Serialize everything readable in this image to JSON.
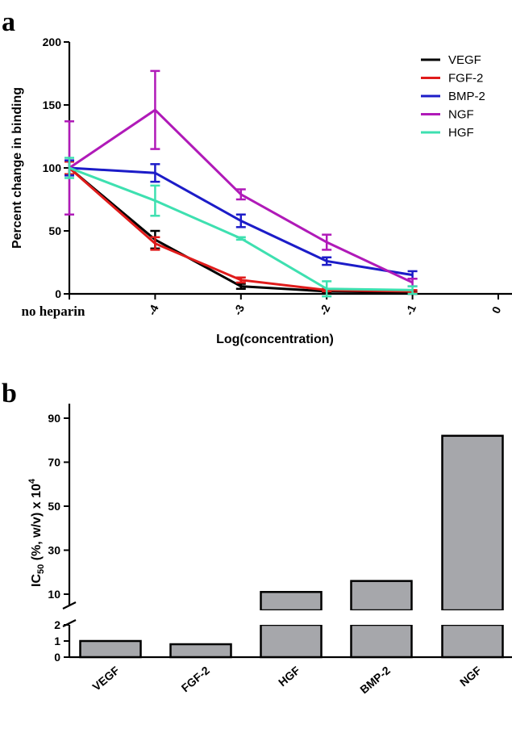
{
  "panels": {
    "a": "a",
    "b": "b"
  },
  "chart_data": [
    {
      "type": "line",
      "ylabel": "Percent change in binding",
      "xlabel": "Log(concentration)",
      "ylim": [
        0,
        200
      ],
      "yticks": [
        "0",
        "50",
        "100",
        "150",
        "200"
      ],
      "x_categories": [
        "no heparin",
        "-4",
        "-3",
        "-2",
        "-1",
        "0"
      ],
      "legend_position": "top-right",
      "series": [
        {
          "name": "VEGF",
          "color": "#000000",
          "points": [
            [
              0,
              100,
              5
            ],
            [
              1,
              43,
              7
            ],
            [
              2,
              6,
              2
            ],
            [
              3,
              2,
              1
            ],
            [
              4,
              1,
              1
            ]
          ]
        },
        {
          "name": "FGF-2",
          "color": "#e01b1b",
          "points": [
            [
              0,
              100,
              5
            ],
            [
              1,
              40,
              5
            ],
            [
              2,
              11,
              2
            ],
            [
              3,
              3,
              1
            ],
            [
              4,
              2,
              1
            ]
          ]
        },
        {
          "name": "BMP-2",
          "color": "#1c1cc8",
          "points": [
            [
              0,
              100,
              6
            ],
            [
              1,
              96,
              7
            ],
            [
              2,
              58,
              5
            ],
            [
              3,
              26,
              3
            ],
            [
              4,
              15,
              3
            ]
          ]
        },
        {
          "name": "NGF",
          "color": "#b01ab8",
          "points": [
            [
              0,
              100,
              37
            ],
            [
              1,
              146,
              31
            ],
            [
              2,
              79,
              4
            ],
            [
              3,
              41,
              6
            ],
            [
              4,
              9,
              3
            ]
          ]
        },
        {
          "name": "HGF",
          "color": "#3ee0b0",
          "points": [
            [
              0,
              100,
              8
            ],
            [
              1,
              74,
              12
            ],
            [
              2,
              44,
              1
            ],
            [
              3,
              4,
              6
            ],
            [
              4,
              3,
              3
            ]
          ]
        }
      ]
    },
    {
      "type": "bar",
      "ylabel": "IC50 (%, w/v) x 10^4",
      "ylabel_parts": {
        "ic": "IC",
        "sub": "50",
        "mid": " (%, w/v) x 10",
        "sup": "4"
      },
      "categories": [
        "VEGF",
        "FGF-2",
        "HGF",
        "BMP-2",
        "NGF"
      ],
      "values": [
        1.0,
        0.8,
        11,
        16,
        82
      ],
      "y_break": [
        2,
        10
      ],
      "lower_ticks": [
        "0",
        "1",
        "2"
      ],
      "upper_ticks": [
        "10",
        "30",
        "50",
        "70",
        "90"
      ],
      "bar_color": "#a6a7ab"
    }
  ]
}
